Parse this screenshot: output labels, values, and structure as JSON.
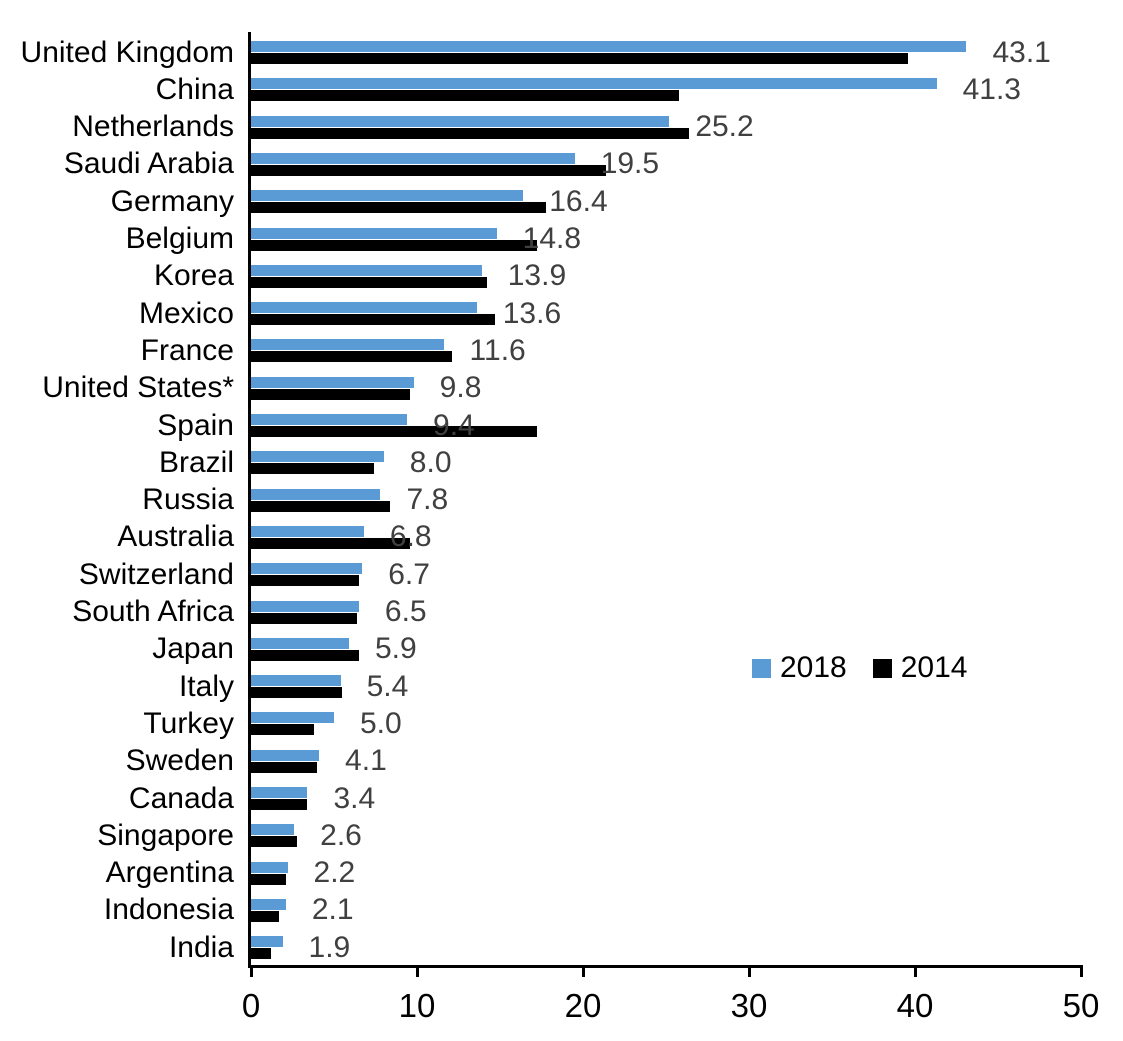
{
  "chart_data": {
    "type": "bar",
    "orientation": "horizontal",
    "title": "",
    "xlabel": "",
    "ylabel": "",
    "xlim": [
      0,
      50
    ],
    "x_ticks": [
      "0",
      "10",
      "20",
      "30",
      "40",
      "50"
    ],
    "grid": false,
    "legend_position": "center-right",
    "categories": [
      "United Kingdom",
      "China",
      "Netherlands",
      "Saudi Arabia",
      "Germany",
      "Belgium",
      "Korea",
      "Mexico",
      "France",
      "United States*",
      "Spain",
      "Brazil",
      "Russia",
      "Australia",
      "Switzerland",
      "South Africa",
      "Japan",
      "Italy",
      "Turkey",
      "Sweden",
      "Canada",
      "Singapore",
      "Argentina",
      "Indonesia",
      "India"
    ],
    "series": [
      {
        "name": "2018",
        "values": [
          43.1,
          41.3,
          25.2,
          19.5,
          16.4,
          14.8,
          13.9,
          13.6,
          11.6,
          9.8,
          9.4,
          8.0,
          7.8,
          6.8,
          6.7,
          6.5,
          5.9,
          5.4,
          5.0,
          4.1,
          3.4,
          2.6,
          2.2,
          2.1,
          1.9
        ],
        "value_labels": [
          "43.1",
          "41.3",
          "25.2",
          "19.5",
          "16.4",
          "14.8",
          "13.9",
          "13.6",
          "11.6",
          "9.8",
          "9.4",
          "8.0",
          "7.8",
          "6.8",
          "6.7",
          "6.5",
          "5.9",
          "5.4",
          "5.0",
          "4.1",
          "3.4",
          "2.6",
          "2.2",
          "2.1",
          "1.9"
        ]
      },
      {
        "name": "2014",
        "values": [
          39.6,
          25.8,
          26.4,
          21.4,
          17.8,
          17.2,
          14.2,
          14.7,
          12.1,
          9.6,
          17.2,
          7.4,
          8.4,
          9.6,
          6.5,
          6.4,
          6.5,
          5.5,
          3.8,
          4.0,
          3.4,
          2.8,
          2.1,
          1.7,
          1.2
        ],
        "value_labels": []
      }
    ]
  },
  "legend": {
    "items": [
      {
        "label": "2018",
        "color": "#5B9BD5"
      },
      {
        "label": "2014",
        "color": "#000000"
      }
    ]
  },
  "colors": {
    "bar_2018": "#5B9BD5",
    "bar_2014": "#000000",
    "value_label": "#404040",
    "axis": "#000000"
  }
}
